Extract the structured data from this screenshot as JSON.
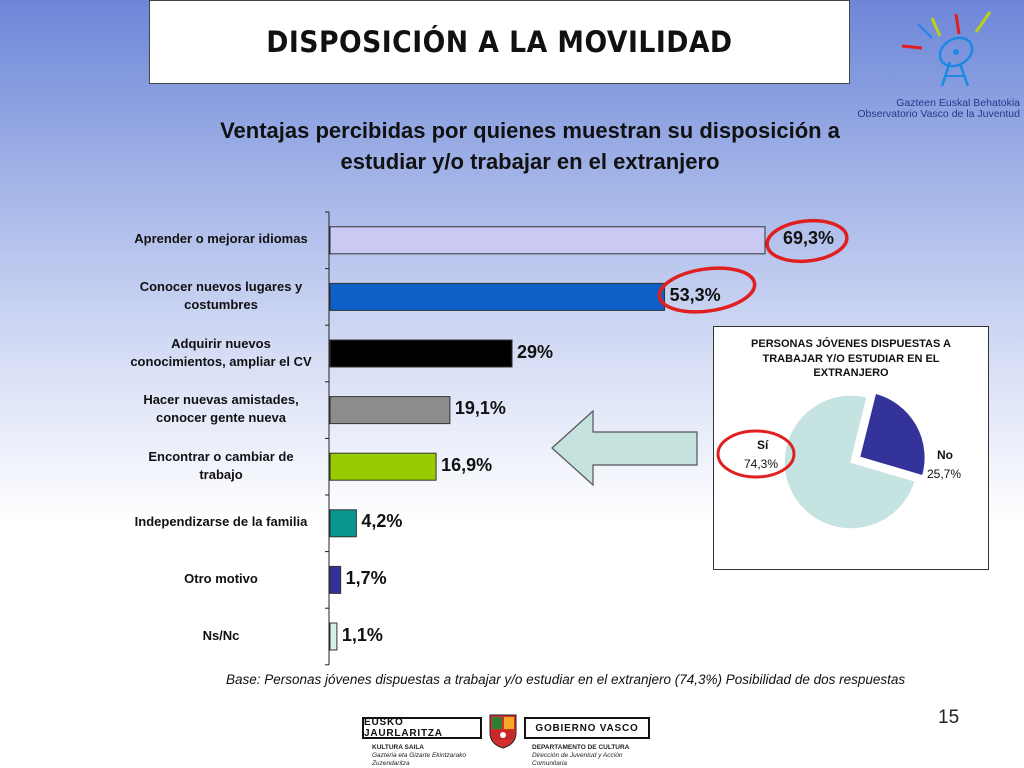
{
  "header": {
    "title": "DISPOSICIÓN A LA MOVILIDAD"
  },
  "logo": {
    "line1": "Gazteen Euskal Behatokia",
    "line2": "Observatorio Vasco de la Juventud"
  },
  "subtitle": {
    "line1": "Ventajas percibidas por quienes muestran su disposición a",
    "line2": "estudiar y/o trabajar en el extranjero"
  },
  "chart_data": [
    {
      "type": "bar",
      "orientation": "horizontal",
      "categories": [
        "Aprender o mejorar idiomas",
        "Conocer nuevos lugares y costumbres",
        "Adquirir nuevos conocimientos, ampliar el CV",
        "Hacer nuevas amistades, conocer gente nueva",
        "Encontrar o cambiar de trabajo",
        "Independizarse de la familia",
        "Otro motivo",
        "Ns/Nc"
      ],
      "category_lines": [
        [
          "Aprender o mejorar idiomas"
        ],
        [
          "Conocer nuevos lugares y",
          "costumbres"
        ],
        [
          "Adquirir nuevos",
          "conocimientos, ampliar el CV"
        ],
        [
          "Hacer nuevas amistades,",
          "conocer gente nueva"
        ],
        [
          "Encontrar o cambiar de",
          "trabajo"
        ],
        [
          "Independizarse de la familia"
        ],
        [
          "Otro motivo"
        ],
        [
          "Ns/Nc"
        ]
      ],
      "values": [
        69.3,
        53.3,
        29,
        19.1,
        16.9,
        4.2,
        1.7,
        1.1
      ],
      "value_labels": [
        "69,3%",
        "53,3%",
        "29%",
        "19,1%",
        "16,9%",
        "4,2%",
        "1,7%",
        "1,1%"
      ],
      "bar_colors": [
        "#c9c9f4",
        "#0f5fc8",
        "#000000",
        "#8c8c8c",
        "#99cc00",
        "#0a9690",
        "#32329a",
        "#d8efea"
      ],
      "highlighted": [
        "69,3%",
        "53,3%"
      ],
      "highlight_color": "#e02020",
      "xlim": [
        0,
        72
      ]
    },
    {
      "type": "pie",
      "title_lines": [
        "PERSONAS JÓVENES DISPUESTAS A",
        "TRABAJAR Y/O ESTUDIAR EN EL",
        "EXTRANJERO"
      ],
      "slices": [
        {
          "label": "Sí",
          "value": 74.3,
          "value_label": "74,3%",
          "color": "#c5e3e0",
          "highlighted": true
        },
        {
          "label": "No",
          "value": 25.7,
          "value_label": "25,7%",
          "color": "#333399",
          "exploded": true
        }
      ]
    }
  ],
  "footnote": "Base: Personas jóvenes dispuestas a trabajar y/o estudiar en el extranjero (74,3%) Posibilidad  de dos respuestas",
  "page_number": "15",
  "government": {
    "left_name": "EUSKO JAURLARITZA",
    "right_name": "GOBIERNO VASCO",
    "left_dept": "KULTURA SAILA",
    "left_sub1": "Gazteria eta Gizarte Ekintzarako",
    "left_sub2": "Zuzendaritza",
    "right_dept": "DEPARTAMENTO DE CULTURA",
    "right_sub1": "Dirección de Juventud y Acción",
    "right_sub2": "Comunitaria"
  }
}
